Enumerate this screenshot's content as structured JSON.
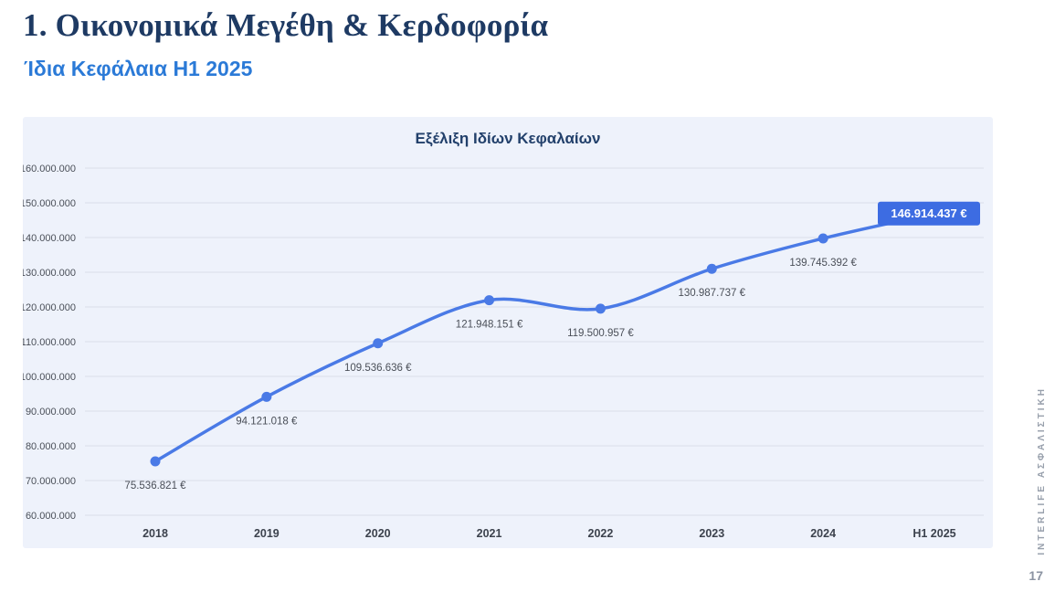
{
  "header": {
    "title": "1. Οικονομικά Μεγέθη & Κερδοφορία",
    "subtitle": "Ίδια Κεφάλαια H1 2025"
  },
  "chart_data": {
    "type": "line",
    "title": "Εξέλιξη Ιδίων Κεφαλαίων",
    "categories": [
      "2018",
      "2019",
      "2020",
      "2021",
      "2022",
      "2023",
      "2024",
      "H1 2025"
    ],
    "values": [
      75536821,
      94121018,
      109536636,
      121948151,
      119500957,
      130987737,
      139745392,
      146914437
    ],
    "labels": [
      "75.536.821 €",
      "94.121.018 €",
      "109.536.636 €",
      "121.948.151 €",
      "119.500.957 €",
      "130.987.737 €",
      "139.745.392 €",
      "146.914.437 €"
    ],
    "ylim": [
      60000000,
      160000000
    ],
    "ytick_step": 10000000,
    "ytick_labels": [
      "160.000.000",
      "150.000.000",
      "140.000.000",
      "130.000.000",
      "120.000.000",
      "110.000.000",
      "100.000.000",
      "90.000.000",
      "80.000.000",
      "70.000.000",
      "60.000.000"
    ],
    "grid": true,
    "legend": "none",
    "line_color": "#4a7ae6",
    "highlight_last": true
  },
  "footer": {
    "brand": "INTERLIFE ΑΣΦΑΛΙΣΤΙΚΗ",
    "page_number": "17"
  },
  "colors": {
    "title": "#1e3a63",
    "subtitle": "#2b7ad7",
    "panel_bg": "#eef2fb",
    "gridline": "#d9dee9",
    "axis_text": "#4a4f58",
    "x_label": "#3c424d",
    "data_label": "#4a4f58",
    "highlight_bg": "#3d6ce2",
    "highlight_text": "#ffffff",
    "brand_text": "#98a0ac"
  }
}
